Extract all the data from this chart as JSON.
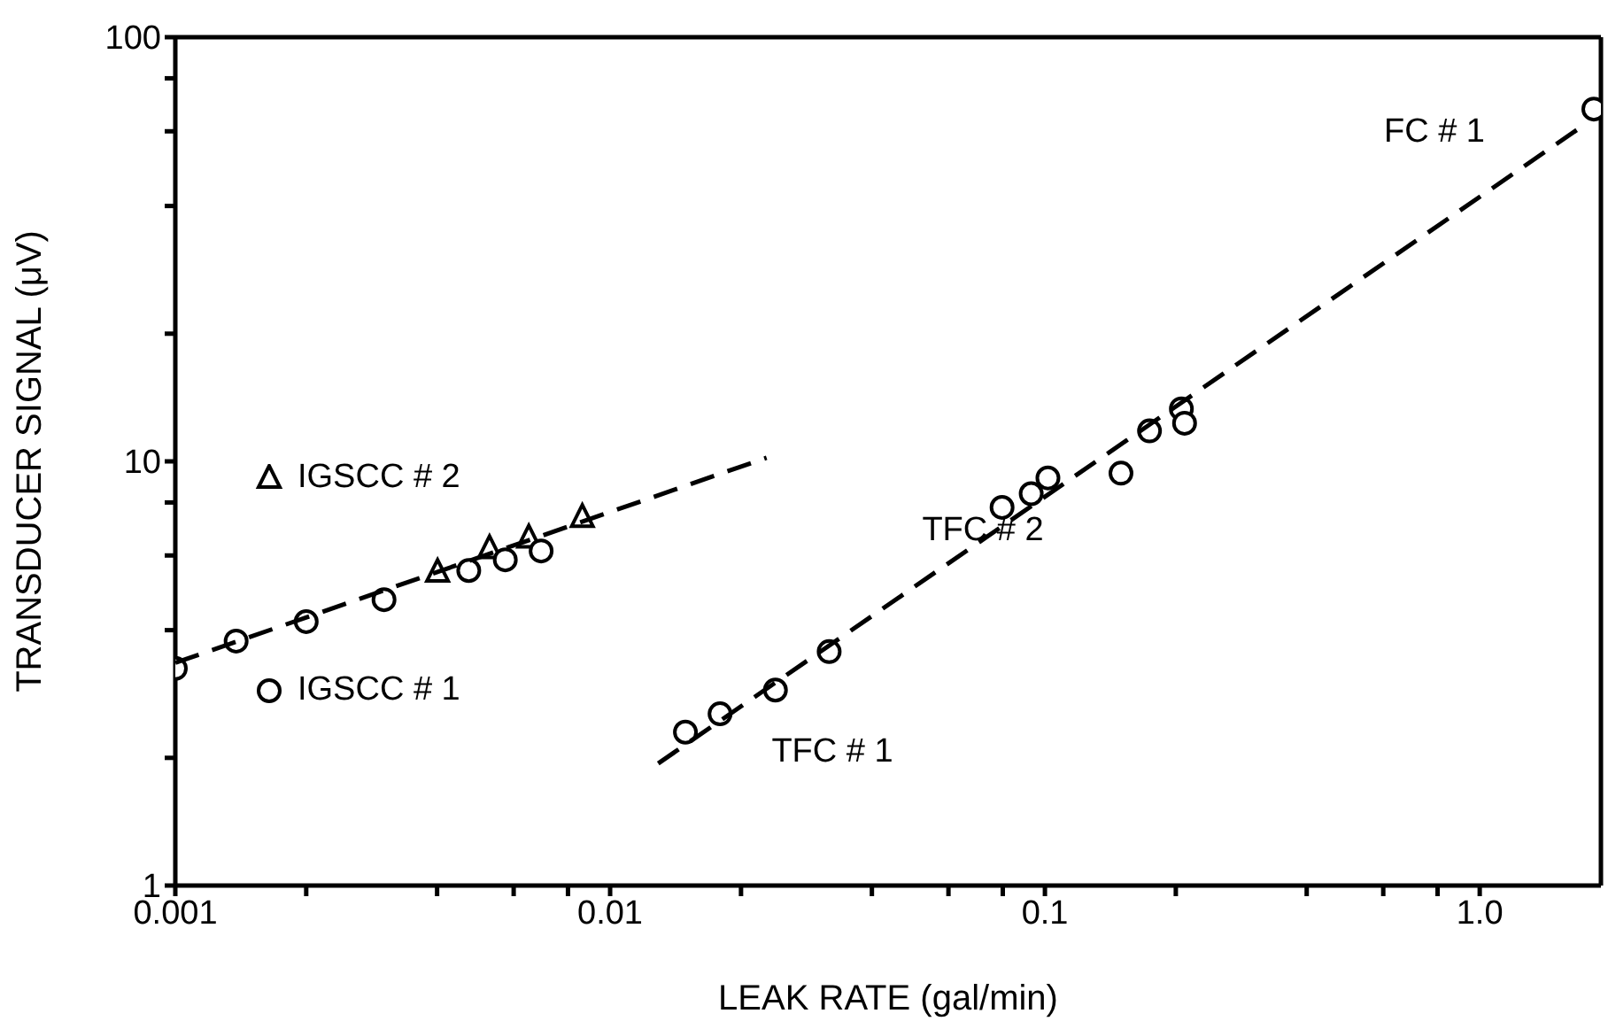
{
  "chart_data": {
    "type": "scatter",
    "xlabel": "LEAK RATE (gal/min)",
    "ylabel": "TRANSDUCER SIGNAL (μV)",
    "log": "xy",
    "xlim": [
      0.001,
      1.9
    ],
    "ylim": [
      1,
      100
    ],
    "xticks": [
      0.001,
      {
        "value": 0.002,
        "label": null
      },
      {
        "value": 0.004,
        "label": null
      },
      {
        "value": 0.006,
        "label": null
      },
      {
        "value": 0.008,
        "label": null
      },
      0.01,
      {
        "value": 0.02,
        "label": null
      },
      {
        "value": 0.04,
        "label": null
      },
      {
        "value": 0.06,
        "label": null
      },
      {
        "value": 0.08,
        "label": null
      },
      0.1,
      {
        "value": 0.2,
        "label": null
      },
      {
        "value": 0.4,
        "label": null
      },
      {
        "value": 0.6,
        "label": null
      },
      {
        "value": 0.8,
        "label": null
      },
      {
        "value": 1,
        "label": "1.0"
      }
    ],
    "yticks": [
      1,
      {
        "value": 2,
        "label": null
      },
      {
        "value": 4,
        "label": null
      },
      {
        "value": 6,
        "label": null
      },
      {
        "value": 8,
        "label": null
      },
      10,
      {
        "value": 20,
        "label": null
      },
      {
        "value": 40,
        "label": null
      },
      {
        "value": 60,
        "label": null
      },
      {
        "value": 80,
        "label": null
      },
      100
    ],
    "legend": "left",
    "series": [
      {
        "name": "IGSCC # 2",
        "color": "#000000",
        "marker": "triangle",
        "x": [
          0.00401,
          0.00528,
          0.0065,
          0.00863
        ],
        "values": [
          5.48,
          6.23,
          6.6,
          7.38
        ]
      },
      {
        "name": "IGSCC # 1",
        "color": "#000000",
        "marker": "circle",
        "x": [
          0.001,
          0.00138,
          0.002,
          0.00302,
          0.00473,
          0.00574,
          0.00694
        ],
        "values": [
          3.25,
          3.77,
          4.19,
          4.72,
          5.53,
          5.86,
          6.15
        ]
      },
      {
        "color": "#000000",
        "marker": "circle",
        "x": [
          0.0149,
          0.0179,
          0.024,
          0.0319,
          0.0797,
          0.093,
          0.1016,
          0.1496,
          0.174,
          0.206,
          0.2095,
          1.83
        ],
        "values": [
          2.3,
          2.54,
          2.89,
          3.56,
          7.79,
          8.39,
          9.14,
          9.38,
          11.8,
          13.3,
          12.3,
          67.7
        ]
      },
      {
        "type": "line",
        "color": "#000000",
        "marker": "none",
        "line_style": "dashed",
        "x": [
          0.001,
          0.0229
        ],
        "values": [
          3.35,
          10.2
        ]
      },
      {
        "type": "line",
        "color": "#000000",
        "marker": "none",
        "line_style": "dashed",
        "x": [
          0.0129,
          1.69
        ],
        "values": [
          1.94,
          60.9
        ]
      }
    ],
    "annotations": [
      "TFC # 1",
      "TFC # 2",
      "FC # 1"
    ]
  }
}
